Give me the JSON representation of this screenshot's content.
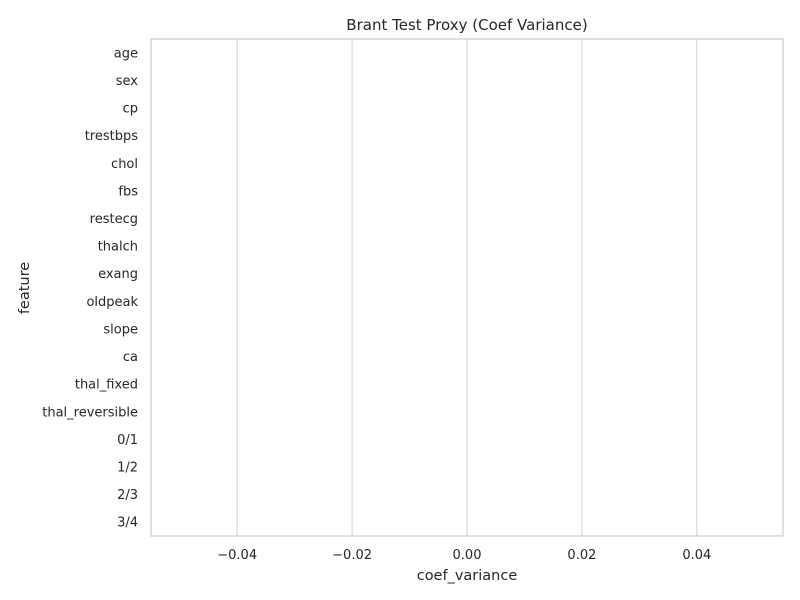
{
  "chart_data": {
    "type": "bar",
    "orientation": "horizontal",
    "title": "Brant Test Proxy (Coef Variance)",
    "xlabel": "coef_variance",
    "ylabel": "feature",
    "categories": [
      "age",
      "sex",
      "cp",
      "trestbps",
      "chol",
      "fbs",
      "restecg",
      "thalch",
      "exang",
      "oldpeak",
      "slope",
      "ca",
      "thal_fixed",
      "thal_reversible",
      "0/1",
      "1/2",
      "2/3",
      "3/4"
    ],
    "values": [
      0,
      0,
      0,
      0,
      0,
      0,
      0,
      0,
      0,
      0,
      0,
      0,
      0,
      0,
      0,
      0,
      0,
      0
    ],
    "xlim": [
      -0.055,
      0.055
    ],
    "xticks": [
      -0.04,
      -0.02,
      0.0,
      0.02,
      0.04
    ],
    "xtick_labels": [
      "−0.04",
      "−0.02",
      "0.00",
      "0.02",
      "0.04"
    ],
    "grid": "vertical",
    "colors": {
      "grid": "#d9d9d9",
      "frame": "#cccccc",
      "text": "#262626",
      "bar": "#4c72b0"
    }
  }
}
